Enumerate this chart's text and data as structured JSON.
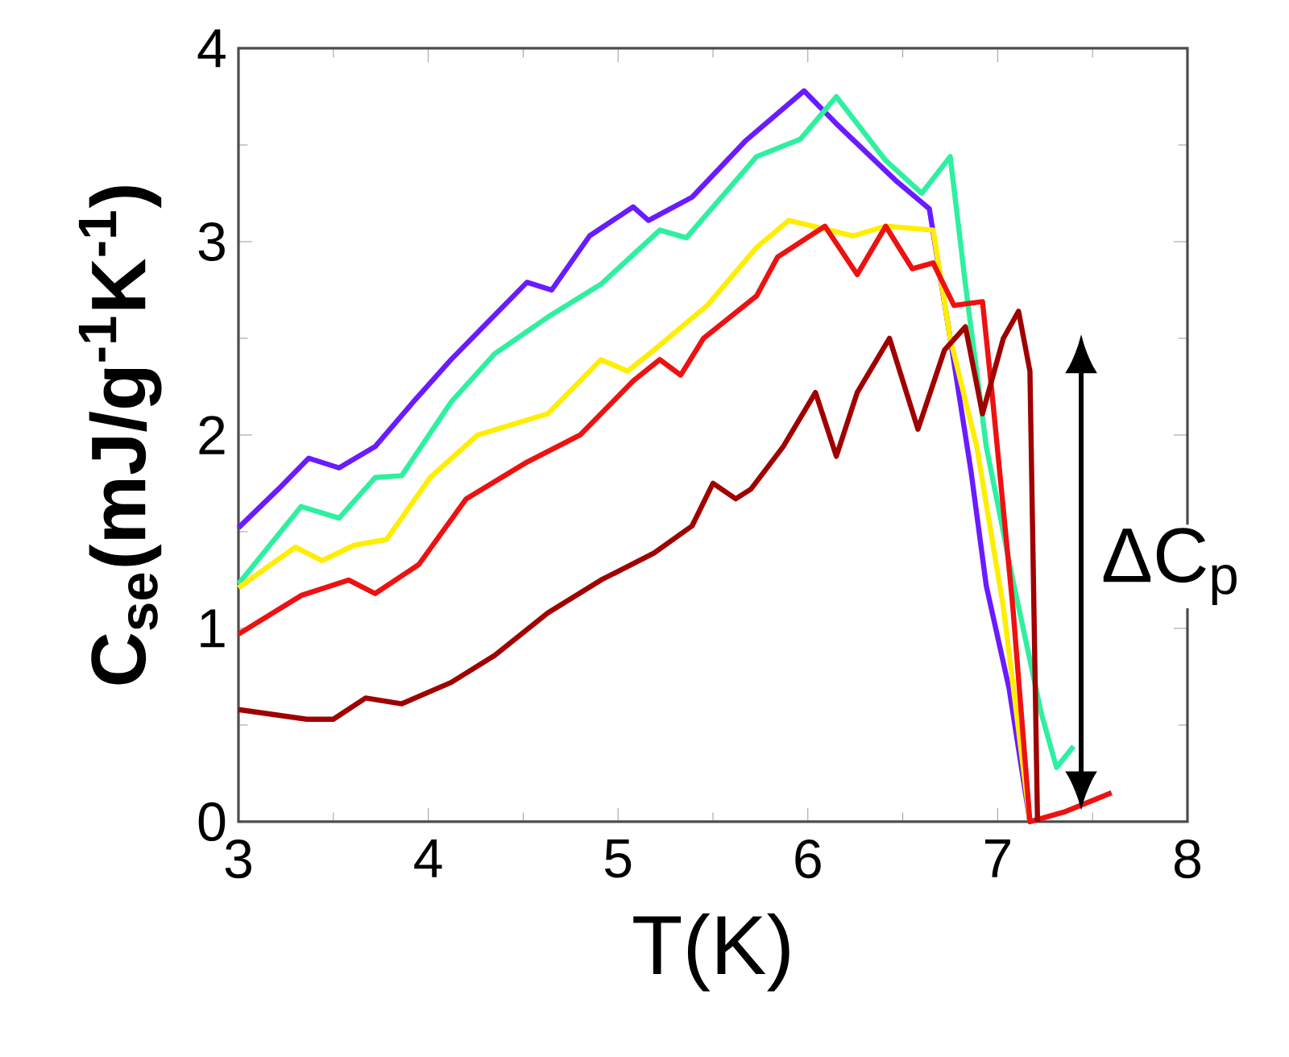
{
  "chart_data": {
    "type": "line",
    "xlabel": "T(K)",
    "ylabel": "C$_{se}$(mJ/g$^{-1}$K$^{-1}$)",
    "xlim": [
      3,
      8
    ],
    "ylim": [
      0,
      4
    ],
    "xticks": [
      3,
      4,
      5,
      6,
      7,
      8
    ],
    "yticks": [
      0,
      1,
      2,
      3,
      4
    ],
    "grid": false,
    "marker": "none",
    "line_style": "solid",
    "annotations": [
      "ΔC$_{p}$"
    ],
    "series": [
      {
        "color": "#6a1bff",
        "x": [
          3.0,
          3.21,
          3.37,
          3.53,
          3.72,
          3.92,
          4.12,
          4.29,
          4.52,
          4.65,
          4.85,
          5.08,
          5.16,
          5.39,
          5.67,
          5.98,
          6.15,
          6.47,
          6.64,
          6.75,
          6.86,
          6.94,
          7.06,
          7.17
        ],
        "values": [
          1.52,
          1.72,
          1.88,
          1.83,
          1.94,
          2.17,
          2.39,
          2.56,
          2.79,
          2.75,
          3.03,
          3.18,
          3.11,
          3.23,
          3.52,
          3.78,
          3.61,
          3.31,
          3.17,
          2.5,
          1.81,
          1.22,
          0.69,
          0.0
        ]
      },
      {
        "color": "#2ef0a0",
        "x": [
          3.0,
          3.33,
          3.53,
          3.72,
          3.86,
          4.12,
          4.35,
          4.63,
          4.91,
          5.22,
          5.36,
          5.73,
          5.96,
          6.15,
          6.41,
          6.6,
          6.75,
          6.83,
          6.94,
          7.08,
          7.23,
          7.31,
          7.4
        ],
        "values": [
          1.23,
          1.63,
          1.57,
          1.78,
          1.79,
          2.17,
          2.42,
          2.61,
          2.78,
          3.06,
          3.02,
          3.44,
          3.53,
          3.75,
          3.42,
          3.25,
          3.44,
          2.78,
          1.94,
          1.25,
          0.56,
          0.28,
          0.39
        ]
      },
      {
        "color": "#ffee00",
        "x": [
          3.0,
          3.3,
          3.44,
          3.61,
          3.78,
          4.01,
          4.26,
          4.63,
          4.91,
          5.05,
          5.19,
          5.47,
          5.73,
          5.9,
          6.24,
          6.41,
          6.66,
          6.75,
          6.89,
          7.03,
          7.17
        ],
        "values": [
          1.21,
          1.42,
          1.35,
          1.43,
          1.46,
          1.78,
          2.0,
          2.11,
          2.39,
          2.33,
          2.44,
          2.67,
          2.97,
          3.11,
          3.03,
          3.08,
          3.06,
          2.5,
          1.94,
          1.11,
          0.0
        ]
      },
      {
        "color": "#ee1111",
        "x": [
          3.0,
          3.33,
          3.58,
          3.72,
          3.95,
          4.2,
          4.52,
          4.8,
          5.08,
          5.22,
          5.33,
          5.45,
          5.73,
          5.84,
          6.09,
          6.26,
          6.41,
          6.55,
          6.66,
          6.77,
          6.92,
          6.97,
          7.08,
          7.17,
          7.35,
          7.6
        ],
        "values": [
          0.97,
          1.17,
          1.25,
          1.18,
          1.33,
          1.67,
          1.86,
          2.0,
          2.28,
          2.39,
          2.31,
          2.5,
          2.72,
          2.92,
          3.08,
          2.83,
          3.08,
          2.86,
          2.89,
          2.67,
          2.69,
          2.22,
          1.11,
          0.0,
          0.05,
          0.15
        ]
      },
      {
        "color": "#a00000",
        "x": [
          3.0,
          3.36,
          3.5,
          3.67,
          3.86,
          4.12,
          4.35,
          4.63,
          4.91,
          5.19,
          5.39,
          5.5,
          5.62,
          5.7,
          5.87,
          6.04,
          6.15,
          6.26,
          6.43,
          6.58,
          6.72,
          6.83,
          6.92,
          7.03,
          7.11,
          7.17,
          7.21
        ],
        "values": [
          0.58,
          0.53,
          0.53,
          0.64,
          0.61,
          0.72,
          0.86,
          1.08,
          1.25,
          1.39,
          1.53,
          1.75,
          1.67,
          1.72,
          1.94,
          2.22,
          1.89,
          2.22,
          2.5,
          2.03,
          2.44,
          2.56,
          2.11,
          2.5,
          2.64,
          2.33,
          0.0
        ]
      }
    ]
  }
}
